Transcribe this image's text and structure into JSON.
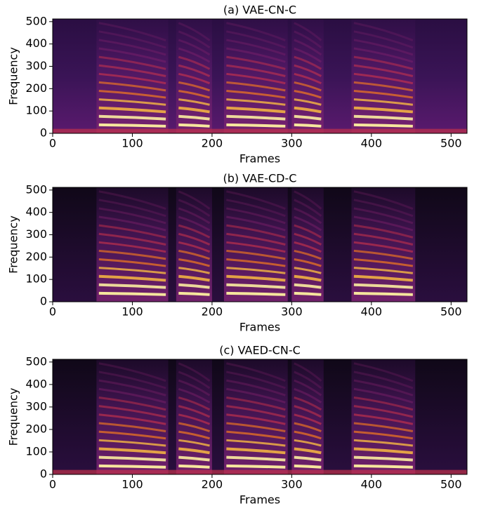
{
  "chart_data": [
    {
      "type": "heatmap",
      "title": "(a) VAE-CN-C",
      "x_label": "Frames",
      "y_label": "Frequency",
      "xlim": [
        0,
        520
      ],
      "ylim": [
        0,
        512
      ],
      "xticks": [
        0,
        100,
        200,
        300,
        400,
        500
      ],
      "yticks": [
        0,
        100,
        200,
        300,
        400,
        500
      ]
    },
    {
      "type": "heatmap",
      "title": "(b) VAE-CD-C",
      "x_label": "Frames",
      "y_label": "Frequency",
      "xlim": [
        0,
        520
      ],
      "ylim": [
        0,
        512
      ],
      "xticks": [
        0,
        100,
        200,
        300,
        400,
        500
      ],
      "yticks": [
        0,
        100,
        200,
        300,
        400,
        500
      ]
    },
    {
      "type": "heatmap",
      "title": "(c) VAED-CN-C",
      "x_label": "Frames",
      "y_label": "Frequency",
      "xlim": [
        0,
        520
      ],
      "ylim": [
        0,
        512
      ],
      "xticks": [
        0,
        100,
        200,
        300,
        400,
        500
      ],
      "yticks": [
        0,
        100,
        200,
        300,
        400,
        500
      ]
    }
  ]
}
